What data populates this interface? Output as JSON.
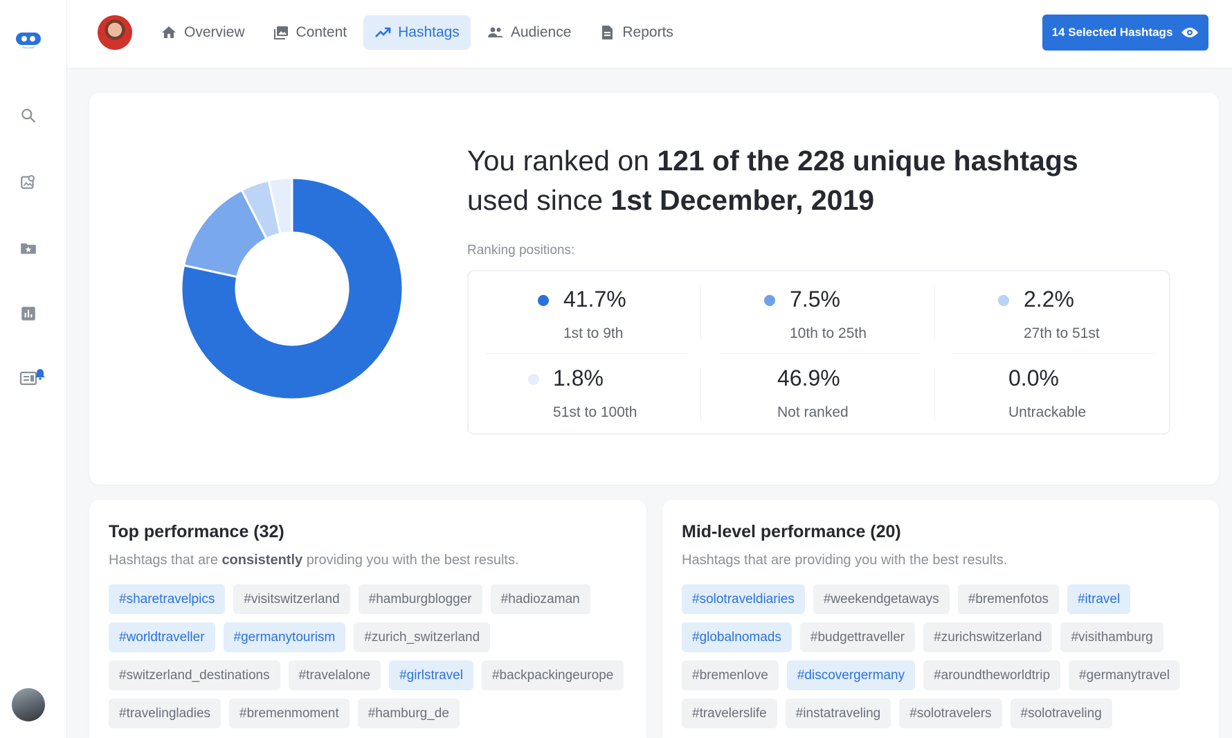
{
  "sidebar": {
    "icons": [
      "logo-icon",
      "search-icon",
      "profile-search-icon",
      "folder-star-icon",
      "bar-chart-icon",
      "news-alert-icon"
    ]
  },
  "nav": {
    "items": [
      {
        "label": "Overview",
        "icon": "home-icon"
      },
      {
        "label": "Content",
        "icon": "image-icon"
      },
      {
        "label": "Hashtags",
        "icon": "trend-icon",
        "active": true
      },
      {
        "label": "Audience",
        "icon": "people-icon"
      },
      {
        "label": "Reports",
        "icon": "document-icon"
      }
    ],
    "selected_button": "14 Selected Hashtags"
  },
  "summary": {
    "headline_a": "You ranked on ",
    "headline_b": "121 of the 228 unique hashtags",
    "headline_c": " used since ",
    "headline_d": "1st December, 2019",
    "ranking_label": "Ranking positions:",
    "stats": [
      {
        "value": "41.7%",
        "label": "1st to 9th",
        "color": "#2a72db"
      },
      {
        "value": "7.5%",
        "label": "10th to 25th",
        "color": "#6fa0ea"
      },
      {
        "value": "2.2%",
        "label": "27th to 51st",
        "color": "#b9d2f5"
      },
      {
        "value": "1.8%",
        "label": "51st to 100th",
        "color": "#e5eefb"
      },
      {
        "value": "46.9%",
        "label": "Not ranked"
      },
      {
        "value": "0.0%",
        "label": "Untrackable"
      }
    ]
  },
  "chart_data": {
    "type": "pie",
    "categories": [
      "1st to 9th",
      "10th to 25th",
      "27th to 51st",
      "51st to 100th"
    ],
    "values": [
      41.7,
      7.5,
      2.2,
      1.8
    ],
    "colors": [
      "#2a72db",
      "#7aa8ec",
      "#bcd4f6",
      "#e6eefb"
    ]
  },
  "top": {
    "title": "Top performance (32)",
    "sub_a": "Hashtags that are ",
    "sub_b": "consistently",
    "sub_c": " providing you with the best results.",
    "tags": [
      {
        "t": "#sharetravelpics",
        "hl": true
      },
      {
        "t": "#visitswitzerland"
      },
      {
        "t": "#hamburgblogger"
      },
      {
        "t": "#hadiozaman"
      },
      {
        "t": "#worldtraveller",
        "hl": true
      },
      {
        "t": "#germanytourism",
        "hl": true
      },
      {
        "t": "#zurich_switzerland"
      },
      {
        "t": "#switzerland_destinations"
      },
      {
        "t": "#travelalone"
      },
      {
        "t": "#girlstravel",
        "hl": true
      },
      {
        "t": "#backpackingeurope"
      },
      {
        "t": "#travelingladies"
      },
      {
        "t": "#bremenmoment"
      },
      {
        "t": "#hamburg_de"
      }
    ]
  },
  "mid": {
    "title": "Mid-level performance (20)",
    "sub": "Hashtags that are providing you with the best results.",
    "tags": [
      {
        "t": "#solotraveldiaries",
        "hl": true
      },
      {
        "t": "#weekendgetaways"
      },
      {
        "t": "#bremenfotos"
      },
      {
        "t": "#itravel",
        "hl": true
      },
      {
        "t": "#globalnomads",
        "hl": true
      },
      {
        "t": "#budgettraveller"
      },
      {
        "t": "#zurichswitzerland"
      },
      {
        "t": "#visithamburg"
      },
      {
        "t": "#bremenlove"
      },
      {
        "t": "#discovergermany",
        "hl": true
      },
      {
        "t": "#aroundtheworldtrip"
      },
      {
        "t": "#germanytravel"
      },
      {
        "t": "#travelerslife"
      },
      {
        "t": "#instatraveling"
      },
      {
        "t": "#solotravelers"
      },
      {
        "t": "#solotraveling"
      }
    ]
  }
}
